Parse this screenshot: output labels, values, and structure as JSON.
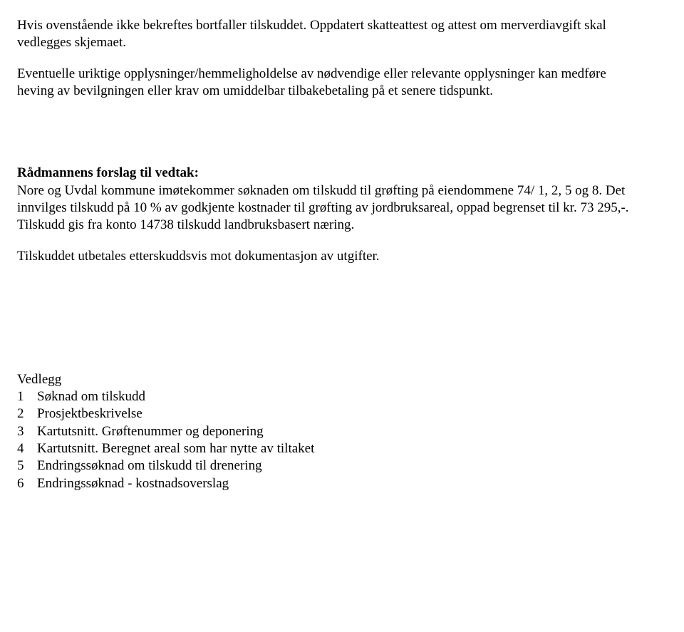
{
  "para1": "Hvis ovenstående ikke bekreftes bortfaller tilskuddet. Oppdatert skatteattest og attest om merverdiavgift skal vedlegges skjemaet.",
  "para2": "Eventuelle uriktige opplysninger/hemmeligholdelse av nødvendige eller relevante opplysninger kan medføre heving av bevilgningen eller krav om umiddelbar tilbakebetaling på et senere tidspunkt.",
  "heading1": "Rådmannens forslag til vedtak:",
  "para3": "Nore og Uvdal kommune imøtekommer søknaden om tilskudd til grøfting på eiendommene 74/ 1, 2, 5 og 8. Det innvilges tilskudd på 10 % av godkjente kostnader til grøfting av jordbruksareal, oppad begrenset til kr. 73 295,-. Tilskudd gis fra konto 14738 tilskudd landbruksbasert næring.",
  "para4": "Tilskuddet utbetales etterskuddsvis mot dokumentasjon av utgifter.",
  "attachments_label": "Vedlegg",
  "attachments": [
    {
      "n": "1",
      "text": "Søknad om tilskudd"
    },
    {
      "n": "2",
      "text": "Prosjektbeskrivelse"
    },
    {
      "n": "3",
      "text": "Kartutsnitt. Grøftenummer og deponering"
    },
    {
      "n": "4",
      "text": "Kartutsnitt. Beregnet areal som har nytte av tiltaket"
    },
    {
      "n": "5",
      "text": "Endringssøknad om tilskudd til drenering"
    },
    {
      "n": "6",
      "text": "Endringssøknad - kostnadsoverslag"
    }
  ]
}
